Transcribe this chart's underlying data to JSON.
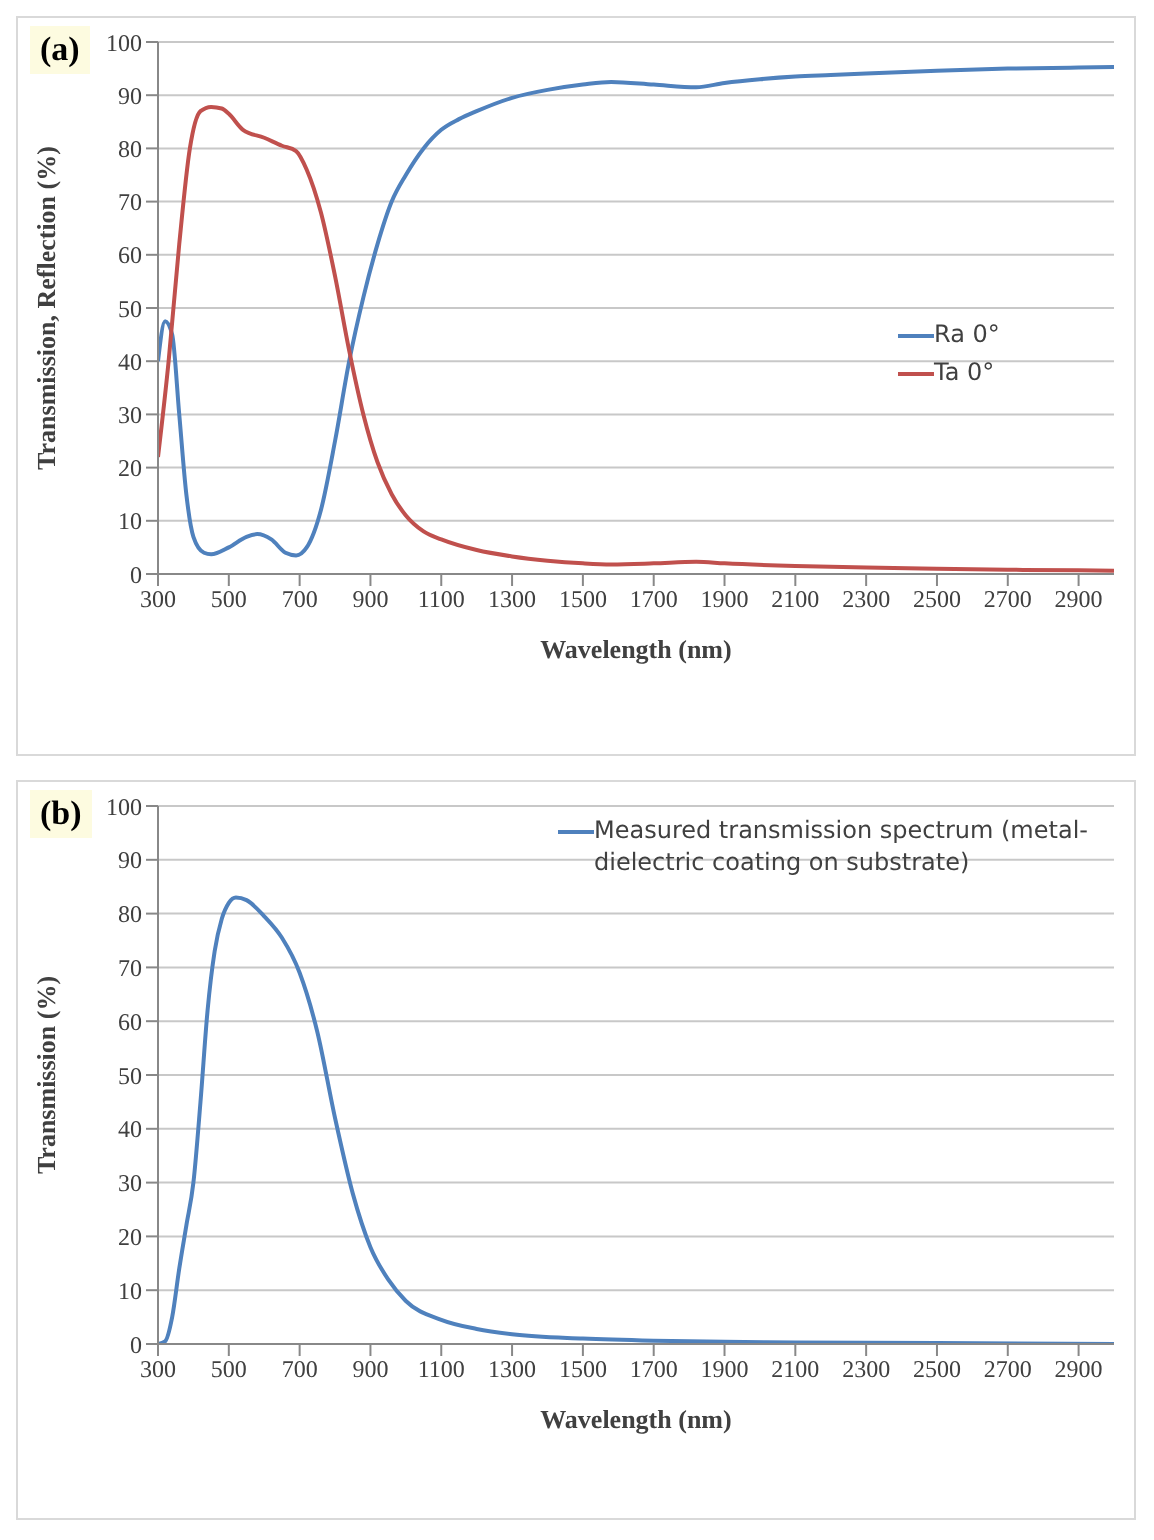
{
  "chart_data": [
    {
      "type": "line",
      "title": "(a)",
      "xlabel": "Wavelength (nm)",
      "ylabel": "Transmission, Reflection (%)",
      "xlim": [
        300,
        3000
      ],
      "xticks": [
        300,
        500,
        700,
        900,
        1100,
        1300,
        1500,
        1700,
        1900,
        2100,
        2300,
        2500,
        2700,
        2900
      ],
      "ylim": [
        0,
        100
      ],
      "yticks": [
        0,
        10,
        20,
        30,
        40,
        50,
        60,
        70,
        80,
        90,
        100
      ],
      "grid": "y",
      "legend": "right",
      "marker": "none",
      "line_style": "solid",
      "series": [
        {
          "name": "Ra 0°",
          "color": "#4f81bd",
          "x": [
            300,
            320,
            340,
            360,
            380,
            400,
            430,
            450,
            500,
            550,
            580,
            620,
            660,
            690,
            720,
            760,
            800,
            840,
            880,
            920,
            960,
            1000,
            1050,
            1100,
            1150,
            1200,
            1300,
            1400,
            1500,
            1580,
            1700,
            1820,
            1900,
            2000,
            2100,
            2200,
            2300,
            2500,
            2700,
            2900,
            3000
          ],
          "values": [
            40,
            47.5,
            45,
            30,
            15,
            7,
            4,
            3.7,
            5,
            7,
            7.5,
            6.5,
            4,
            3.5,
            5,
            12,
            25,
            40,
            52,
            62,
            70,
            75,
            80,
            83.5,
            85.5,
            87,
            89.5,
            91,
            92,
            92.5,
            92,
            91.5,
            92.3,
            93,
            93.5,
            93.8,
            94.1,
            94.6,
            95,
            95.2,
            95.3
          ]
        },
        {
          "name": "Ta 0°",
          "color": "#c0504d",
          "x": [
            300,
            330,
            360,
            390,
            420,
            450,
            480,
            500,
            540,
            600,
            650,
            690,
            720,
            760,
            800,
            840,
            880,
            920,
            960,
            1000,
            1050,
            1100,
            1200,
            1300,
            1400,
            1500,
            1580,
            1700,
            1820,
            1900,
            2100,
            2300,
            2500,
            2700,
            2900,
            3000
          ],
          "values": [
            22,
            40,
            62,
            80,
            87,
            87.8,
            87.5,
            86.5,
            83.5,
            82,
            80.5,
            79.5,
            76,
            68,
            56,
            42,
            30,
            21,
            15,
            11,
            8,
            6.5,
            4.5,
            3.3,
            2.5,
            2,
            1.8,
            2,
            2.3,
            2,
            1.5,
            1.2,
            1,
            0.8,
            0.7,
            0.6
          ]
        }
      ]
    },
    {
      "type": "line",
      "title": "(b)",
      "xlabel": "Wavelength (nm)",
      "ylabel": "Transmission (%)",
      "xlim": [
        300,
        3000
      ],
      "xticks": [
        300,
        500,
        700,
        900,
        1100,
        1300,
        1500,
        1700,
        1900,
        2100,
        2300,
        2500,
        2700,
        2900
      ],
      "ylim": [
        0,
        100
      ],
      "yticks": [
        0,
        10,
        20,
        30,
        40,
        50,
        60,
        70,
        80,
        90,
        100
      ],
      "grid": "y",
      "legend": "top right",
      "marker": "none",
      "line_style": "solid",
      "series": [
        {
          "name": "Measured transmission spectrum (metal-dielectric coating on substrate)",
          "color": "#4f81bd",
          "x": [
            300,
            320,
            340,
            360,
            380,
            400,
            420,
            440,
            460,
            480,
            500,
            520,
            550,
            600,
            650,
            700,
            750,
            800,
            850,
            900,
            950,
            1000,
            1100,
            1200,
            1300,
            1500,
            1700,
            1900,
            2100,
            2500,
            3000
          ],
          "values": [
            0,
            0.5,
            5,
            14,
            22,
            30,
            45,
            62,
            73,
            79,
            82,
            83,
            82.5,
            79.5,
            75.5,
            69,
            58,
            42,
            28,
            18,
            12,
            8,
            4.5,
            2.8,
            1.8,
            1,
            0.6,
            0.4,
            0.3,
            0.2,
            0
          ]
        }
      ]
    }
  ]
}
